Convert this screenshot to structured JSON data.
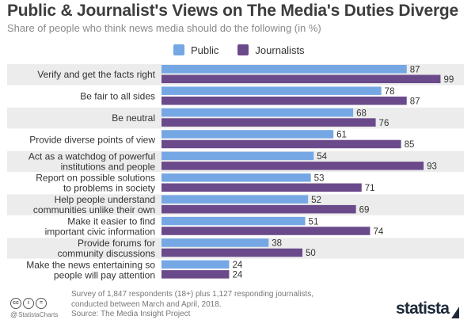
{
  "header": {
    "title": "Public & Journalist's Views on The Media's Duties Diverge",
    "subtitle": "Share of people who think news media should do the following (in %)"
  },
  "legend": {
    "public": "Public",
    "journalists": "Journalists"
  },
  "colors": {
    "public": "#75a7e4",
    "journalists": "#6b4a8b",
    "row_band": "#ececec"
  },
  "footer": {
    "source_line1": "Survey of 1,847 respondents (18+) plus 1,127 responding journalists,",
    "source_line2": "conducted between March and April, 2018.",
    "source_line3": "Source: The Media Insight Project",
    "handle": "StatistaCharts",
    "logo": "statista",
    "cc": "cc",
    "by": "i",
    "nd": "="
  },
  "chart_data": {
    "type": "bar",
    "orientation": "horizontal",
    "categories": [
      [
        "Verify and get the facts right"
      ],
      [
        "Be fair to all sides"
      ],
      [
        "Be neutral"
      ],
      [
        "Provide diverse points of view"
      ],
      [
        "Act as a watchdog of powerful",
        "institutions and people"
      ],
      [
        "Report on possible solutions",
        "to problems in society"
      ],
      [
        "Help people understand",
        "communities unlike their own"
      ],
      [
        "Make it easier to find",
        "important civic information"
      ],
      [
        "Provide forums for",
        "community discussions"
      ],
      [
        "Make the news entertaining so",
        "people will pay attention"
      ]
    ],
    "series": [
      {
        "name": "Public",
        "values": [
          87,
          78,
          68,
          61,
          54,
          53,
          52,
          51,
          38,
          24
        ]
      },
      {
        "name": "Journalists",
        "values": [
          99,
          87,
          76,
          85,
          93,
          71,
          69,
          74,
          50,
          24
        ]
      }
    ],
    "xlim": [
      0,
      100
    ],
    "grid": false,
    "legend_position": "top"
  }
}
